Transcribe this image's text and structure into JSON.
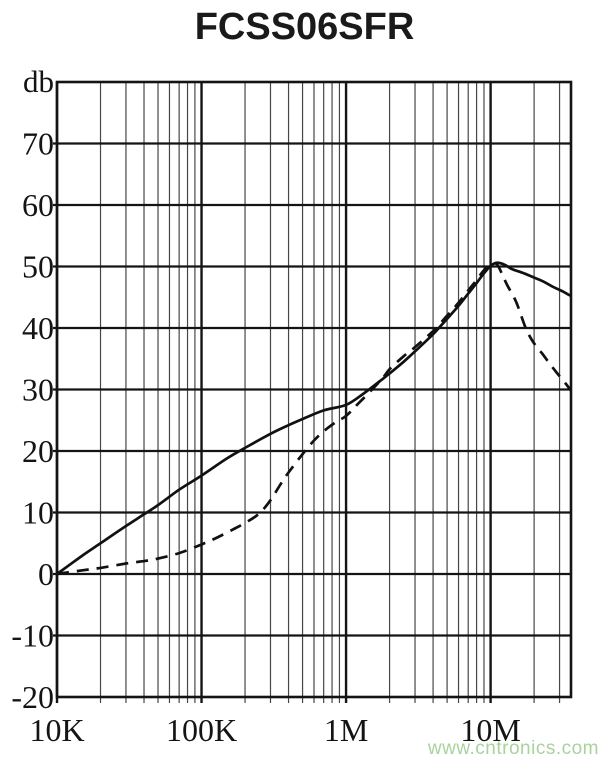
{
  "title": "FCSS06SFR",
  "watermark": {
    "text": "www.cntronics.com",
    "color": "#a9d29d"
  },
  "colors": {
    "axis": "#141414",
    "minor_grid": "#474747",
    "curve": "#111111",
    "background": "#ffffff"
  },
  "chart_data": {
    "type": "line",
    "title": "FCSS06SFR",
    "xlabel": "",
    "ylabel": "db",
    "legend": "none",
    "grid": "on",
    "x_axis": {
      "scale": "log",
      "min": 10000,
      "max": 36000000,
      "ticks": [
        {
          "value": 10000,
          "label": "10K"
        },
        {
          "value": 100000,
          "label": "100K"
        },
        {
          "value": 1000000,
          "label": "1M"
        },
        {
          "value": 10000000,
          "label": "10M"
        }
      ]
    },
    "y_axis": {
      "min": -20,
      "max": 80,
      "step": 10,
      "unit_label": "db",
      "tick_labels": [
        70,
        60,
        50,
        40,
        30,
        20,
        10,
        0,
        -10,
        -20
      ]
    },
    "series": [
      {
        "name": "solid-curve",
        "style": "solid",
        "points": [
          [
            10000,
            0
          ],
          [
            15000,
            3
          ],
          [
            20000,
            5
          ],
          [
            30000,
            7.8
          ],
          [
            40000,
            9.7
          ],
          [
            50000,
            11.2
          ],
          [
            70000,
            13.7
          ],
          [
            100000,
            16
          ],
          [
            150000,
            18.8
          ],
          [
            200000,
            20.5
          ],
          [
            300000,
            22.8
          ],
          [
            400000,
            24.2
          ],
          [
            500000,
            25.2
          ],
          [
            700000,
            26.6
          ],
          [
            1000000,
            27.5
          ],
          [
            1300000,
            29.2
          ],
          [
            1700000,
            31.3
          ],
          [
            2000000,
            32.6
          ],
          [
            2500000,
            34.5
          ],
          [
            3000000,
            36.2
          ],
          [
            4000000,
            39
          ],
          [
            5000000,
            41.5
          ],
          [
            6000000,
            43.6
          ],
          [
            7000000,
            45.6
          ],
          [
            8000000,
            47.3
          ],
          [
            9000000,
            48.9
          ],
          [
            10000000,
            50.1
          ],
          [
            11000000,
            50.6
          ],
          [
            12500000,
            50.3
          ],
          [
            14000000,
            49.6
          ],
          [
            17000000,
            48.9
          ],
          [
            20000000,
            48.2
          ],
          [
            23000000,
            47.6
          ],
          [
            27000000,
            46.7
          ],
          [
            30000000,
            46.2
          ],
          [
            33000000,
            45.7
          ],
          [
            36000000,
            45.2
          ]
        ]
      },
      {
        "name": "dashed-curve",
        "style": "dashed",
        "points": [
          [
            10000,
            0
          ],
          [
            15000,
            0.6
          ],
          [
            20000,
            1
          ],
          [
            30000,
            1.7
          ],
          [
            40000,
            2.1
          ],
          [
            50000,
            2.5
          ],
          [
            70000,
            3.4
          ],
          [
            100000,
            4.8
          ],
          [
            130000,
            6
          ],
          [
            170000,
            7.4
          ],
          [
            200000,
            8.3
          ],
          [
            250000,
            9.8
          ],
          [
            300000,
            12
          ],
          [
            350000,
            14.5
          ],
          [
            400000,
            16.5
          ],
          [
            500000,
            19.5
          ],
          [
            600000,
            21.7
          ],
          [
            700000,
            23.2
          ],
          [
            850000,
            24.7
          ],
          [
            1000000,
            25.7
          ],
          [
            1200000,
            27.6
          ],
          [
            1500000,
            29.9
          ],
          [
            1800000,
            31.9
          ],
          [
            2000000,
            33.3
          ],
          [
            2500000,
            35.4
          ],
          [
            3000000,
            36.9
          ],
          [
            4000000,
            39.5
          ],
          [
            5000000,
            42
          ],
          [
            6000000,
            44.1
          ],
          [
            7000000,
            46.1
          ],
          [
            8000000,
            47.8
          ],
          [
            9000000,
            49.4
          ],
          [
            10000000,
            50.3
          ],
          [
            11000000,
            50.4
          ],
          [
            12000000,
            48.8
          ],
          [
            13000000,
            47
          ],
          [
            15000000,
            44.3
          ],
          [
            17500000,
            40
          ],
          [
            20000000,
            37.5
          ],
          [
            23000000,
            35.7
          ],
          [
            26000000,
            34
          ],
          [
            29000000,
            32.6
          ],
          [
            33000000,
            31
          ],
          [
            36000000,
            29.8
          ]
        ]
      }
    ]
  }
}
